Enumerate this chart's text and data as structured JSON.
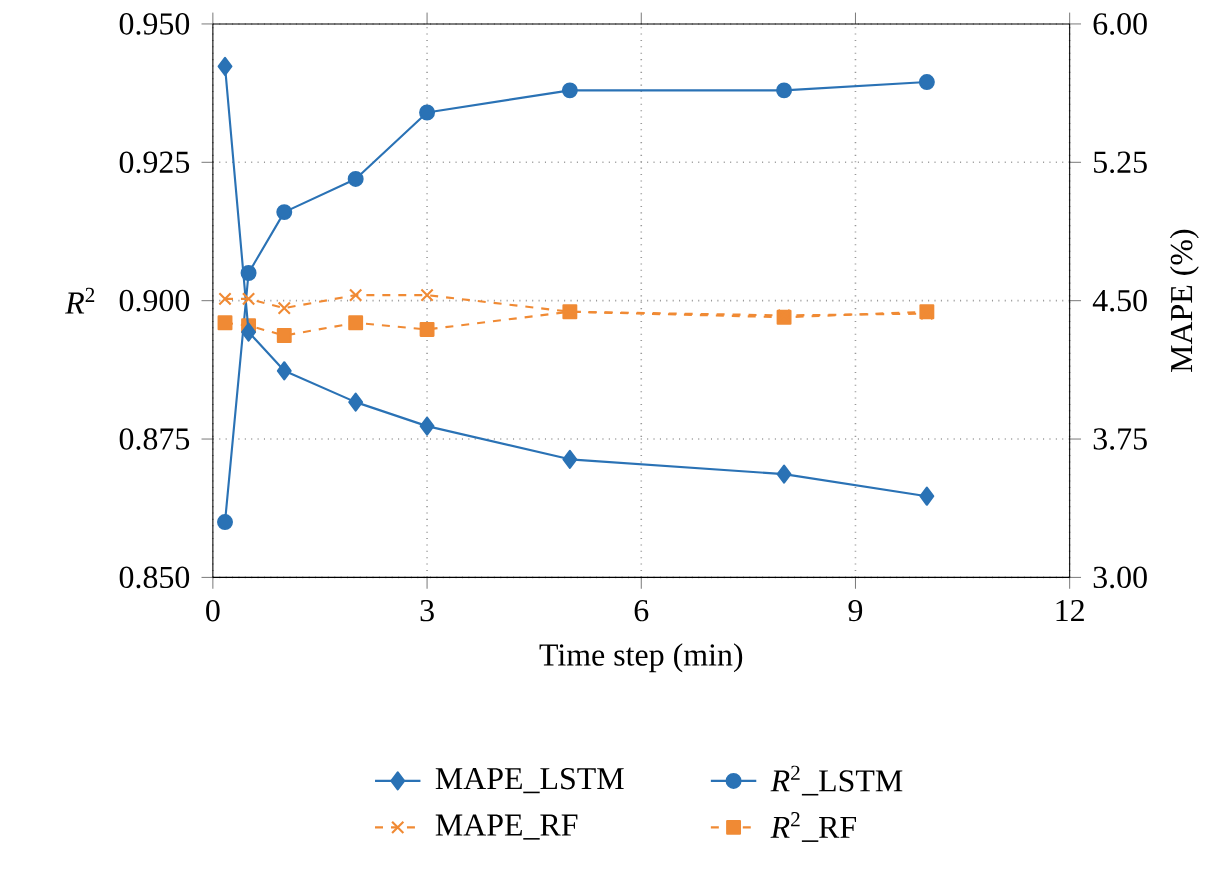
{
  "chart_data": {
    "type": "line",
    "xlabel": "Time step (min)",
    "ylabel": "*R*$^{2}$",
    "y2label": "MAPE (%)",
    "x": [
      0.17,
      0.5,
      1,
      2,
      3,
      5,
      8,
      10
    ],
    "xlim": [
      0,
      12
    ],
    "xticks": [
      0,
      3,
      6,
      9,
      12
    ],
    "ylim": [
      0.85,
      0.95
    ],
    "yticks": [
      {
        "value": 0.85,
        "label": "0.850"
      },
      {
        "value": 0.875,
        "label": "0.875"
      },
      {
        "value": 0.9,
        "label": "0.900"
      },
      {
        "value": 0.925,
        "label": "0.925"
      },
      {
        "value": 0.95,
        "label": "0.950"
      }
    ],
    "y2lim": [
      3,
      6
    ],
    "y2ticks": [
      {
        "value": 3,
        "label": "3.00"
      },
      {
        "value": 3.75,
        "label": "3.75"
      },
      {
        "value": 4.5,
        "label": "4.50"
      },
      {
        "value": 5.25,
        "label": "5.25"
      },
      {
        "value": 6,
        "label": "6.00"
      }
    ],
    "grid": true,
    "legend": "bottom",
    "series": [
      {
        "name": "MAPE_LSTM",
        "color": "#2a72b5",
        "axis": "y2",
        "marker": "diamond",
        "line_style": "solid",
        "values": [
          5.77,
          4.33,
          4.12,
          3.95,
          3.82,
          3.64,
          3.56,
          3.44
        ]
      },
      {
        "name": "*R*$^{2}$_LSTM",
        "color": "#2a72b5",
        "marker": "circle",
        "line_style": "solid",
        "values": [
          0.86,
          0.905,
          0.916,
          0.922,
          0.934,
          0.938,
          0.938,
          0.9395
        ]
      },
      {
        "name": "MAPE_RF",
        "color": "#f08a34",
        "axis": "y2",
        "marker": "cross",
        "line_style": "dashed",
        "values": [
          4.51,
          4.51,
          4.46,
          4.53,
          4.53,
          4.44,
          4.42,
          4.43
        ]
      },
      {
        "name": "*R*$^{2}$_RF",
        "color": "#f08a34",
        "marker": "square",
        "line_style": "dashed",
        "values": [
          0.896,
          0.8955,
          0.8937,
          0.896,
          0.8948,
          0.898,
          0.897,
          0.898
        ]
      }
    ]
  }
}
